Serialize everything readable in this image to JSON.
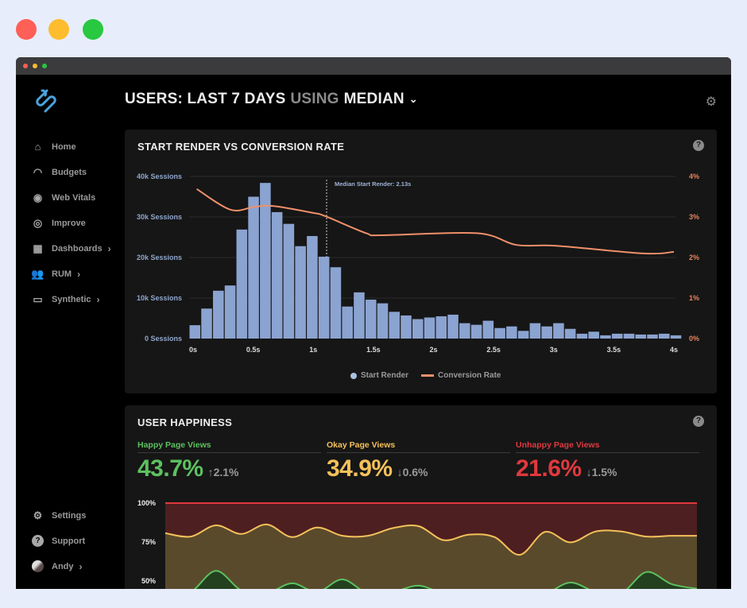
{
  "colors": {
    "accent": "#4aa3df",
    "bars": "#8ba3d0",
    "conversion": "#f0906a",
    "happy": "#5cc160",
    "okay": "#f5c15a",
    "unhappy": "#e0393e"
  },
  "header": {
    "title_part1": "USERS: LAST 7 DAYS",
    "title_part2": "USING",
    "title_part3": "MEDIAN",
    "settings_icon": "gear-icon"
  },
  "sidebar": {
    "items": [
      {
        "label": "Home",
        "icon": "home-icon"
      },
      {
        "label": "Budgets",
        "icon": "speedometer-icon"
      },
      {
        "label": "Web Vitals",
        "icon": "pulse-icon"
      },
      {
        "label": "Improve",
        "icon": "target-icon"
      },
      {
        "label": "Dashboards",
        "icon": "dashboard-icon",
        "chevron": true
      },
      {
        "label": "RUM",
        "icon": "users-icon",
        "chevron": true
      },
      {
        "label": "Synthetic",
        "icon": "monitor-icon",
        "chevron": true
      }
    ],
    "bottom": [
      {
        "label": "Settings",
        "icon": "gear-icon"
      },
      {
        "label": "Support",
        "icon": "help-icon"
      },
      {
        "label": "Andy",
        "icon": "avatar",
        "chevron": true
      }
    ]
  },
  "panel1": {
    "title": "START RENDER VS CONVERSION RATE",
    "help": "?"
  },
  "panel2": {
    "title": "USER HAPPINESS",
    "help": "?"
  },
  "metrics": [
    {
      "label": "Happy Page Views",
      "value": "43.7%",
      "delta": "↑2.1%"
    },
    {
      "label": "Okay Page Views",
      "value": "34.9%",
      "delta": "↓0.6%"
    },
    {
      "label": "Unhappy Page Views",
      "value": "21.6%",
      "delta": "↓1.5%"
    }
  ],
  "chart_data": [
    {
      "type": "bar",
      "title": "START RENDER VS CONVERSION RATE",
      "x_ticks": [
        "0s",
        "0.5s",
        "1s",
        "1.5s",
        "2s",
        "2.5s",
        "3s",
        "3.5s",
        "4s"
      ],
      "xlim": [
        0,
        4
      ],
      "y_left_ticks": [
        "0 Sessions",
        "10k Sessions",
        "20k Sessions",
        "30k Sessions",
        "40k Sessions"
      ],
      "y_left_lim": [
        0,
        40000
      ],
      "y_right_ticks": [
        "0%",
        "1%",
        "2%",
        "3%",
        "4%"
      ],
      "y_right_lim": [
        0,
        4
      ],
      "grid": true,
      "legend": "bottom",
      "annotation": "Median Start Render: 2.13s",
      "series": [
        {
          "name": "Start Render",
          "type": "bar",
          "values": [
            3300,
            7400,
            11800,
            13100,
            26900,
            35000,
            38400,
            31200,
            28300,
            22800,
            25300,
            20200,
            17600,
            7900,
            11400,
            9600,
            8700,
            6600,
            5700,
            4800,
            5200,
            5500,
            5900,
            3800,
            3400,
            4400,
            2600,
            3000,
            1900,
            3800,
            3000,
            3800,
            2400,
            1200,
            1700,
            800,
            1200,
            1200,
            1000,
            1000,
            1200,
            800
          ]
        },
        {
          "name": "Conversion Rate",
          "type": "line",
          "x": [
            0.03,
            0.31,
            0.51,
            0.67,
            1.0,
            1.1,
            1.44,
            1.57,
            2.36,
            2.69,
            3.02,
            3.75,
            4.0
          ],
          "y": [
            3.69,
            3.18,
            3.25,
            3.27,
            3.1,
            3.02,
            2.6,
            2.55,
            2.6,
            2.31,
            2.29,
            2.1,
            2.14
          ]
        }
      ]
    },
    {
      "type": "area",
      "title": "USER HAPPINESS",
      "y_ticks": [
        "100%",
        "75%",
        "50%"
      ],
      "ylim": [
        50,
        100
      ],
      "series": [
        {
          "name": "Unhappy Page Views",
          "values": [
            100,
            100,
            100,
            100,
            100,
            100,
            100,
            100,
            100,
            100,
            100,
            100,
            100,
            100,
            100,
            100,
            100,
            100,
            100,
            100,
            100,
            100
          ]
        },
        {
          "name": "Okay Page Views",
          "values": [
            80.7,
            78.5,
            85.7,
            80.2,
            86.3,
            78.2,
            84.3,
            79,
            79,
            84,
            85.2,
            76.2,
            79.8,
            78.2,
            66.8,
            81.5,
            74.8,
            81.8,
            81.8,
            78.5,
            79,
            79
          ]
        },
        {
          "name": "Happy Page Views",
          "values": [
            42,
            43,
            56.5,
            44,
            42,
            48.5,
            43,
            51,
            42,
            43,
            47,
            42,
            41,
            42,
            43,
            42,
            49,
            43,
            42,
            55.7,
            48,
            45
          ]
        }
      ]
    }
  ]
}
